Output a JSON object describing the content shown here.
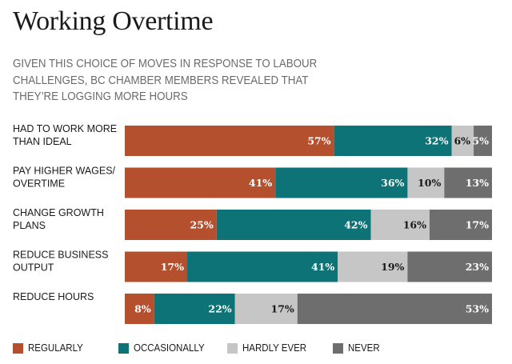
{
  "title": "Working Overtime",
  "subtitle": "GIVEN THIS CHOICE OF MOVES IN RESPONSE TO LABOUR CHALLENGES, BC CHAMBER MEMBERS REVEALED THAT THEY’RE LOGGING MORE HOURS",
  "colors": {
    "regularly": "#b5502f",
    "occasionally": "#0d7377",
    "hardly_ever": "#c6c6c6",
    "never": "#6e6e6e",
    "label_on_dark": "#ffffff",
    "label_on_light": "#1a1a1a"
  },
  "chart_data": {
    "type": "bar",
    "orientation": "horizontal",
    "stacked": true,
    "normalized_to": 100,
    "categories": [
      [
        "HAD TO WORK MORE",
        "THAN IDEAL"
      ],
      [
        "PAY HIGHER WAGES/",
        "OVERTIME"
      ],
      [
        "CHANGE GROWTH",
        "PLANS"
      ],
      [
        "REDUCE BUSINESS",
        "OUTPUT"
      ],
      [
        "REDUCE HOURS"
      ]
    ],
    "series": [
      {
        "name": "REGULARLY",
        "color_key": "regularly",
        "values": [
          57,
          41,
          25,
          17,
          8
        ]
      },
      {
        "name": "OCCASIONALLY",
        "color_key": "occasionally",
        "values": [
          32,
          36,
          42,
          41,
          22
        ]
      },
      {
        "name": "HARDLY EVER",
        "color_key": "hardly_ever",
        "values": [
          6,
          10,
          16,
          19,
          17
        ]
      },
      {
        "name": "NEVER",
        "color_key": "never",
        "values": [
          5,
          13,
          17,
          23,
          53
        ]
      }
    ],
    "value_suffix": "%",
    "value_label_position": "inside-end",
    "grid": false,
    "legend_position": "bottom"
  }
}
